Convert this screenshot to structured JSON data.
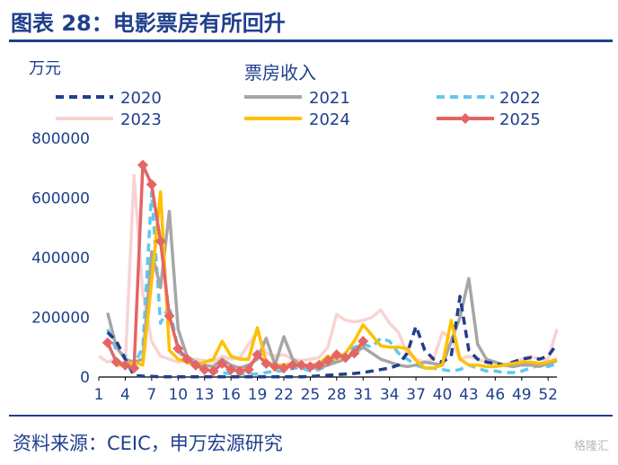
{
  "header": {
    "title": "图表 28：电影票房有所回升"
  },
  "footer": {
    "source": "资料来源：CEIC，申万宏源研究",
    "watermark": "格隆汇"
  },
  "chart_data": {
    "type": "line",
    "title": "票房收入",
    "ylabel": "万元",
    "ylim": [
      0,
      800000
    ],
    "yticks": [
      0,
      200000,
      400000,
      600000,
      800000
    ],
    "xlim": [
      1,
      53
    ],
    "xticks": [
      1,
      4,
      7,
      10,
      13,
      16,
      19,
      22,
      25,
      28,
      31,
      34,
      37,
      40,
      43,
      46,
      49,
      52
    ],
    "legend_position": "top",
    "series": [
      {
        "name": "2020",
        "color": "#1f3f8c",
        "dash": "dash",
        "x": [
          2,
          3,
          4,
          5,
          6,
          7,
          8,
          9,
          10,
          11,
          12,
          13,
          14,
          15,
          16,
          17,
          18,
          19,
          20,
          21,
          22,
          23,
          24,
          25,
          26,
          27,
          28,
          29,
          30,
          31,
          32,
          33,
          34,
          35,
          36,
          37,
          38,
          39,
          40,
          41,
          42,
          43,
          44,
          45,
          46,
          47,
          48,
          49,
          50,
          51,
          52,
          53
        ],
        "values": [
          150000,
          120000,
          60000,
          5000,
          3000,
          2000,
          1000,
          1000,
          1000,
          1000,
          1000,
          1000,
          1000,
          1000,
          1000,
          1000,
          1000,
          1000,
          1000,
          1000,
          1000,
          1000,
          1000,
          2000,
          4000,
          6000,
          8000,
          10000,
          12000,
          15000,
          20000,
          25000,
          30000,
          40000,
          80000,
          170000,
          90000,
          60000,
          50000,
          70000,
          270000,
          90000,
          60000,
          50000,
          45000,
          40000,
          50000,
          60000,
          65000,
          60000,
          70000,
          110000
        ]
      },
      {
        "name": "2021",
        "color": "#a6a6a6",
        "dash": "solid",
        "x": [
          2,
          3,
          4,
          5,
          6,
          7,
          8,
          9,
          10,
          11,
          12,
          13,
          14,
          15,
          16,
          17,
          18,
          19,
          20,
          21,
          22,
          23,
          24,
          25,
          26,
          27,
          28,
          29,
          30,
          31,
          32,
          33,
          34,
          35,
          36,
          37,
          38,
          39,
          40,
          41,
          42,
          43,
          44,
          45,
          46,
          47,
          48,
          49,
          50,
          51,
          52,
          53
        ],
        "values": [
          215000,
          100000,
          60000,
          50000,
          60000,
          420000,
          300000,
          555000,
          160000,
          70000,
          50000,
          40000,
          35000,
          60000,
          40000,
          30000,
          40000,
          60000,
          130000,
          40000,
          135000,
          60000,
          40000,
          30000,
          30000,
          40000,
          50000,
          60000,
          80000,
          100000,
          80000,
          60000,
          50000,
          40000,
          35000,
          40000,
          50000,
          45000,
          40000,
          120000,
          200000,
          330000,
          110000,
          60000,
          50000,
          40000,
          35000,
          40000,
          40000,
          35000,
          45000,
          55000
        ]
      },
      {
        "name": "2022",
        "color": "#5fc8ef",
        "dash": "dash",
        "x": [
          2,
          3,
          4,
          5,
          6,
          7,
          8,
          9,
          10,
          11,
          12,
          13,
          14,
          15,
          16,
          17,
          18,
          19,
          20,
          21,
          22,
          23,
          24,
          25,
          26,
          27,
          28,
          29,
          30,
          31,
          32,
          33,
          34,
          35,
          36,
          37,
          38,
          39,
          40,
          41,
          42,
          43,
          44,
          45,
          46,
          47,
          48,
          49,
          50,
          51,
          52,
          53
        ],
        "values": [
          160000,
          90000,
          70000,
          40000,
          100000,
          620000,
          180000,
          240000,
          90000,
          50000,
          40000,
          30000,
          20000,
          15000,
          10000,
          10000,
          10000,
          10000,
          15000,
          20000,
          20000,
          30000,
          30000,
          20000,
          25000,
          40000,
          60000,
          80000,
          100000,
          110000,
          100000,
          130000,
          120000,
          80000,
          60000,
          40000,
          30000,
          30000,
          25000,
          20000,
          25000,
          40000,
          30000,
          20000,
          20000,
          15000,
          15000,
          20000,
          30000,
          40000,
          35000,
          45000
        ]
      },
      {
        "name": "2023",
        "color": "#f8d3d3",
        "dash": "solid",
        "x": [
          1,
          2,
          3,
          4,
          5,
          6,
          7,
          8,
          9,
          10,
          11,
          12,
          13,
          14,
          15,
          16,
          17,
          18,
          19,
          20,
          21,
          22,
          23,
          24,
          25,
          26,
          27,
          28,
          29,
          30,
          31,
          32,
          33,
          34,
          35,
          36,
          37,
          38,
          39,
          40,
          41,
          42,
          43,
          44,
          45,
          46,
          47,
          48,
          49,
          50,
          51,
          52,
          53
        ],
        "values": [
          70000,
          50000,
          60000,
          40000,
          675000,
          280000,
          120000,
          70000,
          60000,
          50000,
          55000,
          60000,
          55000,
          50000,
          70000,
          60000,
          65000,
          110000,
          150000,
          80000,
          70000,
          75000,
          60000,
          55000,
          60000,
          65000,
          100000,
          210000,
          190000,
          185000,
          190000,
          200000,
          225000,
          180000,
          150000,
          80000,
          60000,
          50000,
          60000,
          150000,
          130000,
          60000,
          70000,
          60000,
          50000,
          45000,
          40000,
          50000,
          60000,
          70000,
          60000,
          60000,
          160000
        ]
      },
      {
        "name": "2024",
        "color": "#ffc000",
        "dash": "solid",
        "x": [
          3,
          4,
          5,
          6,
          7,
          8,
          9,
          10,
          11,
          12,
          13,
          14,
          15,
          16,
          17,
          18,
          19,
          20,
          21,
          22,
          23,
          24,
          25,
          26,
          27,
          28,
          29,
          30,
          31,
          32,
          33,
          34,
          35,
          36,
          37,
          38,
          39,
          40,
          41,
          42,
          43,
          44,
          45,
          46,
          47,
          48,
          49,
          50,
          51,
          52,
          53
        ],
        "values": [
          40000,
          40000,
          50000,
          40000,
          320000,
          620000,
          90000,
          60000,
          50000,
          40000,
          50000,
          60000,
          120000,
          70000,
          60000,
          60000,
          165000,
          50000,
          40000,
          40000,
          45000,
          40000,
          40000,
          45000,
          70000,
          60000,
          80000,
          120000,
          175000,
          140000,
          105000,
          100000,
          100000,
          95000,
          55000,
          30000,
          30000,
          40000,
          190000,
          60000,
          40000,
          40000,
          35000,
          35000,
          40000,
          45000,
          50000,
          50000,
          45000,
          50000,
          60000
        ]
      },
      {
        "name": "2025",
        "color": "#e46565",
        "dash": "solid",
        "marker": "diamond",
        "x": [
          2,
          3,
          4,
          5,
          6,
          7,
          8,
          9,
          10,
          11,
          12,
          13,
          14,
          15,
          16,
          17,
          18,
          19,
          20,
          21,
          22,
          23,
          24,
          25,
          26,
          27,
          28,
          29,
          30,
          31
        ],
        "values": [
          115000,
          50000,
          40000,
          30000,
          710000,
          645000,
          455000,
          205000,
          95000,
          60000,
          40000,
          25000,
          20000,
          45000,
          25000,
          20000,
          25000,
          75000,
          45000,
          35000,
          30000,
          40000,
          40000,
          35000,
          40000,
          55000,
          75000,
          65000,
          80000,
          120000
        ]
      }
    ]
  }
}
